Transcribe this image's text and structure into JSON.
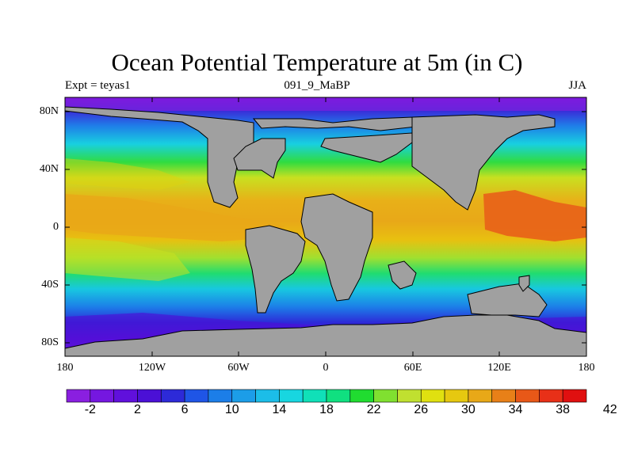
{
  "title": "Ocean Potential Temperature at 5m (in C)",
  "subtitle_left": "Expt = teyas1",
  "subtitle_center": "091_9_MaBP",
  "subtitle_right": "JJA",
  "lat_labels": [
    "80N",
    "40N",
    "0",
    "40S",
    "80S"
  ],
  "lon_labels": [
    "180",
    "120W",
    "60W",
    "0",
    "60E",
    "120E",
    "180"
  ],
  "colorbar": {
    "labels": [
      "-2",
      "2",
      "6",
      "10",
      "14",
      "18",
      "22",
      "26",
      "30",
      "34",
      "38",
      "42"
    ],
    "colors": [
      "#8a1fe0",
      "#7517e0",
      "#6010dc",
      "#4b10d6",
      "#2d2ad8",
      "#1f55e6",
      "#1c7ee8",
      "#1c9de8",
      "#1cbde8",
      "#18d6e0",
      "#10e0b8",
      "#10e080",
      "#20dc30",
      "#80e030",
      "#c0e030",
      "#e0e010",
      "#e6c810",
      "#e8a818",
      "#e88018",
      "#e85818",
      "#e83018",
      "#e01010"
    ]
  },
  "colors": {
    "land": "#a0a0a0",
    "coastline": "#000000"
  }
}
